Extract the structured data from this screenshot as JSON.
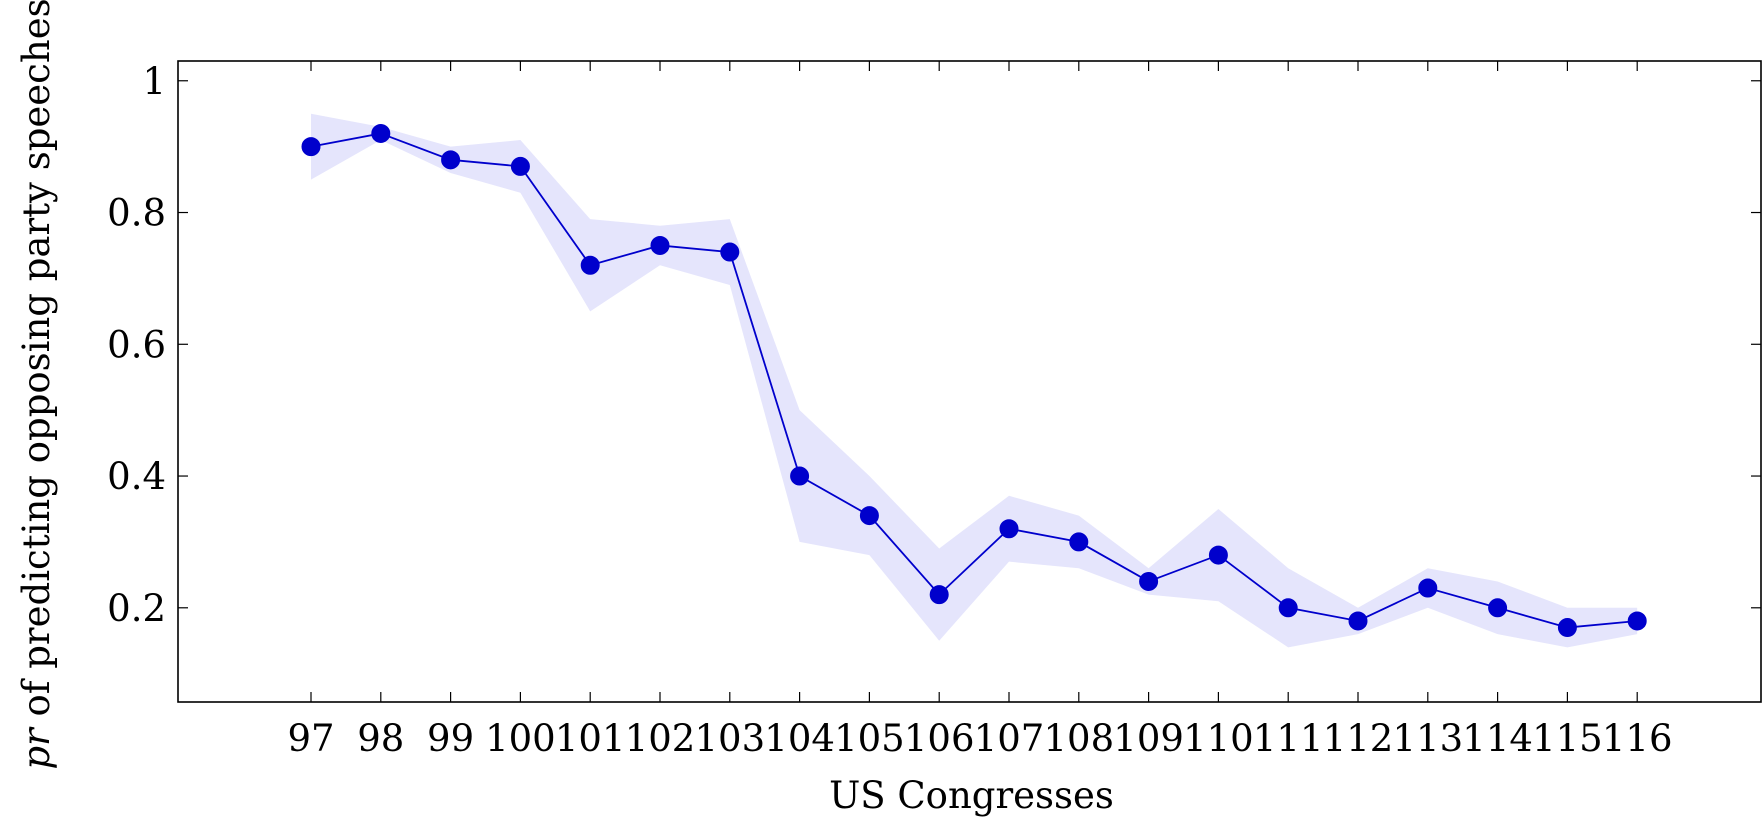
{
  "chart_data": {
    "type": "line",
    "title": "",
    "xlabel": "US Congresses",
    "ylabel_italic": "pr",
    "ylabel_rest": " of predicting opposing party speeches",
    "categories": [
      "97",
      "98",
      "99",
      "100",
      "101",
      "102",
      "103",
      "104",
      "105",
      "106",
      "107",
      "108",
      "109",
      "110",
      "111",
      "112",
      "113",
      "114",
      "115",
      "116"
    ],
    "series": [
      {
        "values": [
          0.9,
          0.92,
          0.88,
          0.87,
          0.72,
          0.75,
          0.74,
          0.4,
          0.34,
          0.22,
          0.32,
          0.3,
          0.24,
          0.28,
          0.2,
          0.18,
          0.23,
          0.2,
          0.17,
          0.18
        ],
        "band_upper": [
          0.95,
          0.93,
          0.9,
          0.91,
          0.79,
          0.78,
          0.79,
          0.5,
          0.4,
          0.29,
          0.37,
          0.34,
          0.26,
          0.35,
          0.26,
          0.2,
          0.26,
          0.24,
          0.2,
          0.2
        ],
        "band_lower": [
          0.85,
          0.91,
          0.86,
          0.83,
          0.65,
          0.72,
          0.69,
          0.3,
          0.28,
          0.15,
          0.27,
          0.26,
          0.22,
          0.21,
          0.14,
          0.16,
          0.2,
          0.16,
          0.14,
          0.16
        ],
        "color": "#0000cc",
        "band_color": "#e5e5fc"
      }
    ],
    "yticks": [
      "0.2",
      "0.4",
      "0.6",
      "0.8",
      "1"
    ],
    "ylim": [
      0.057,
      1.03
    ],
    "grid": false,
    "legend": "none"
  }
}
